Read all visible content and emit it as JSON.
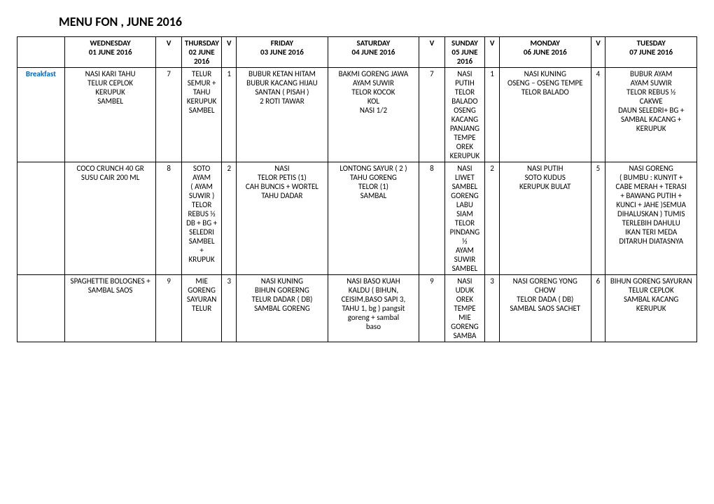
{
  "title": "MENU FON , JUNE 2016",
  "headers": [
    "",
    "WEDNESDAY\n01 JUNE 2016",
    "V",
    "THURSDAY\n02 JUNE 2016",
    "V",
    "FRIDAY\n03 JUNE 2016",
    "SATURDAY\n04 JUNE 2016",
    "V",
    "SUNDAY\n05 JUNE 2016",
    "V",
    "MONDAY\n06 JUNE 2016",
    "V",
    "TUESDAY\n07 JUNE 2016"
  ],
  "rows": [
    {
      "label": "Breakfast",
      "cells": [
        "NASI KARI TAHU\nTELUR CEPLOK\nKERUPUK\nSAMBEL",
        "7",
        "TELUR\nSEMUR +\nTAHU\nKERUPUK\nSAMBEL",
        "1",
        "BUBUR KETAN HITAM\nBUBUR KACANG HIJAU\nSANTAN ( PISAH )\n2 ROTI TAWAR",
        "BAKMI GORENG JAWA\nAYAM SUWIR\nTELOR KOCOK\nKOL\nNASI 1/2",
        "7",
        "NASI PUTIH\nTELOR BALADO\nOSENG KACANG PANJANG\nTEMPE OREK\nKERUPUK",
        "1",
        "NASI KUNING\nOSENG – OSENG TEMPE\nTELOR BALADO",
        "4",
        "BUBUR AYAM\nAYAM SUWIR\nTELOR REBUS ½\nCAKWE\nDAUN SELEDRI+ BG +\nSAMBAL KACANG +\nKERUPUK"
      ]
    },
    {
      "label": "",
      "cells": [
        "COCO CRUNCH 40 GR\nSUSU CAIR 200 ML",
        "8",
        "SOTO AYAM\n( AYAM SUWIR )\nTELOR REBUS ½\nDB + BG +\nSELEDRI\nSAMBEL\n+\nKRUPUK",
        "2",
        "NASI\nTELOR PETIS (1)\nCAH BUNCIS + WORTEL\nTAHU DADAR",
        "LONTONG SAYUR ( 2 )\nTAHU GORENG\nTELOR (1)\nSAMBAL",
        "8",
        "NASI LIWET\nSAMBEL GORENG LABU SIAM\nTELOR PINDANG ½\nAYAM SUWIR\nSAMBEL",
        "2",
        "NASI PUTIH\nSOTO KUDUS\nKERUPUK BULAT",
        "5",
        "NASI GORENG\n( BUMBU : KUNYIT +\nCABE MERAH + TERASI\n+ BAWANG PUTIH +\nKUNCI + JAHE )SEMUA\nDIHALUSKAN ) TUMIS\nTERLEBIH DAHULU\nIKAN TERI MEDA\nDITARUH DIATASNYA"
      ]
    },
    {
      "label": "",
      "cells": [
        "SPAGHETTIE BOLOGNES +\nSAMBAL SAOS",
        "9",
        "MIE GORENG\nSAYURAN\nTELUR",
        "3",
        "NASI KUNING\nBIHUN GORERNG\nTELUR DADAR ( DB)\nSAMBAL GORENG",
        "NASI BASO KUAH\nKALDU ( BIHUN,\nCEISIM,BASO SAPI 3,\nTAHU 1, bg ) pangsit\ngoreng + sambal\nbaso",
        "9",
        "NASI UDUK\nOREK TEMPE\nMIE GORENG\nSAMBA",
        "3",
        "NASI GORENG YONG CHOW\nTELOR DADA ( DB)\nSAMBAL SAOS SACHET",
        "6",
        "BIHUN GORENG SAYURAN\nTELUR CEPLOK\nSAMBAL KACANG\nKERUPUK"
      ]
    }
  ],
  "colors": {
    "link": "#0066cc",
    "border": "#000000",
    "bg": "#ffffff"
  },
  "typography": {
    "title_fontsize": 18,
    "cell_fontsize": 11,
    "font_family": "Calibri"
  }
}
